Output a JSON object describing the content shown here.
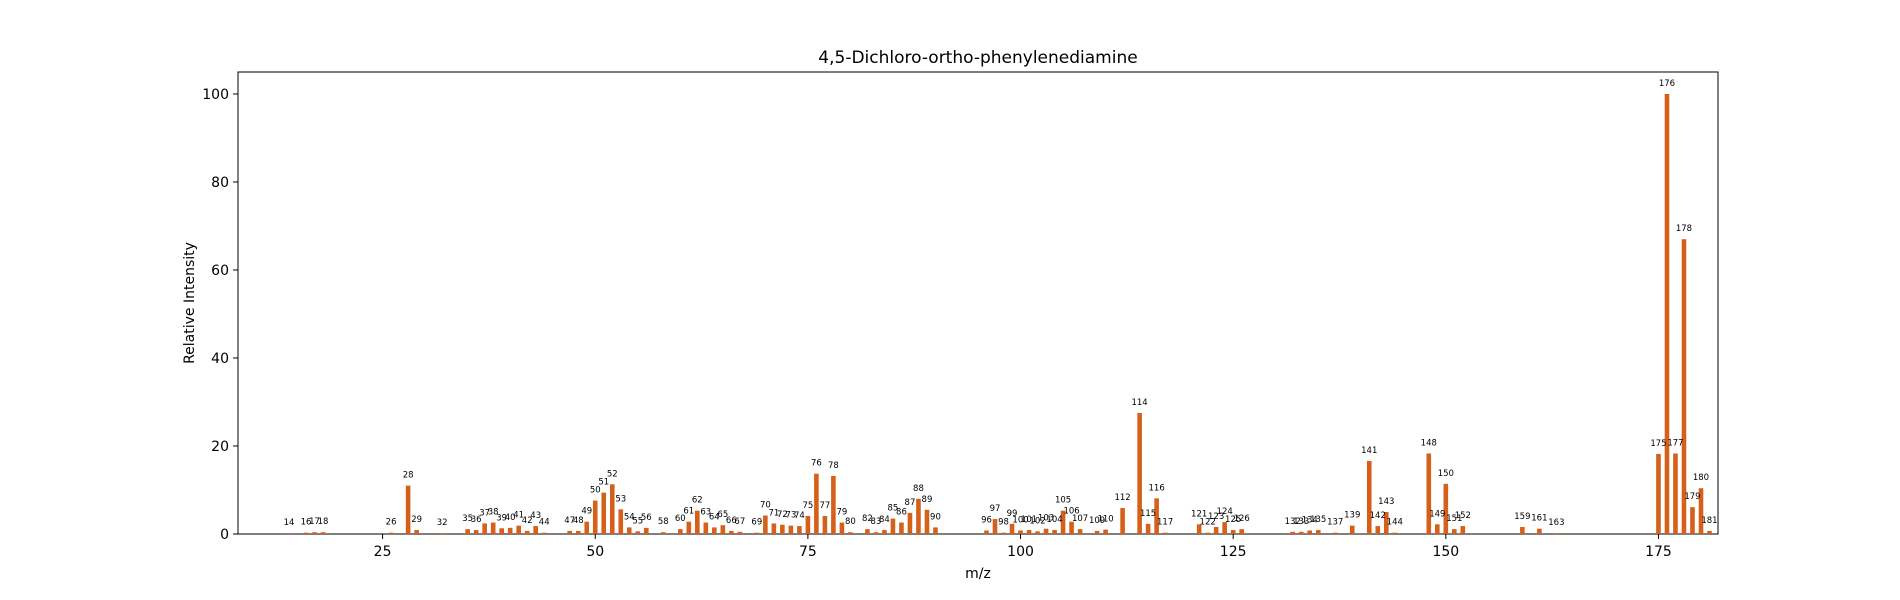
{
  "chart_data": {
    "type": "bar",
    "title": "4,5-Dichloro-ortho-phenylenediamine",
    "xlabel": "m/z",
    "ylabel": "Relative Intensity",
    "xlim": [
      8,
      182
    ],
    "ylim": [
      0,
      105
    ],
    "xticks": [
      25,
      50,
      75,
      100,
      125,
      150,
      175
    ],
    "yticks": [
      0,
      20,
      40,
      60,
      80,
      100
    ],
    "grid": false,
    "bar_color": "#d4601a",
    "x": [
      14,
      16,
      17,
      18,
      26,
      28,
      29,
      32,
      35,
      36,
      37,
      38,
      39,
      40,
      41,
      42,
      43,
      44,
      47,
      48,
      49,
      50,
      51,
      52,
      53,
      54,
      55,
      56,
      58,
      60,
      61,
      62,
      63,
      64,
      65,
      66,
      67,
      69,
      70,
      71,
      72,
      73,
      74,
      75,
      76,
      77,
      78,
      79,
      80,
      82,
      83,
      84,
      85,
      86,
      87,
      88,
      89,
      90,
      96,
      97,
      98,
      99,
      100,
      101,
      102,
      103,
      104,
      105,
      106,
      107,
      109,
      110,
      112,
      114,
      115,
      116,
      117,
      121,
      122,
      123,
      124,
      125,
      126,
      132,
      133,
      134,
      135,
      137,
      139,
      141,
      142,
      143,
      144,
      148,
      149,
      150,
      151,
      152,
      159,
      161,
      163,
      175,
      176,
      177,
      178,
      179,
      180,
      181
    ],
    "values": [
      0.2,
      0.3,
      0.4,
      0.4,
      0.3,
      11,
      0.9,
      0.2,
      1.1,
      0.9,
      2.4,
      2.6,
      1.3,
      1.4,
      1.9,
      0.7,
      1.8,
      0.3,
      0.7,
      0.7,
      2.8,
      7.6,
      9.4,
      11.3,
      5.6,
      1.5,
      0.6,
      1.4,
      0.4,
      1.1,
      2.8,
      5.3,
      2.6,
      1.5,
      2.0,
      0.7,
      0.5,
      0.3,
      4.2,
      2.4,
      2.1,
      1.9,
      1.8,
      4.1,
      13.7,
      4.1,
      13.2,
      2.6,
      0.4,
      1.1,
      0.4,
      0.9,
      3.5,
      2.6,
      4.8,
      8.0,
      5.5,
      1.5,
      0.8,
      3.4,
      0.3,
      2.3,
      0.8,
      0.9,
      0.6,
      1.2,
      0.9,
      5.3,
      2.8,
      1.1,
      0.7,
      1.0,
      5.9,
      27.5,
      2.3,
      8.1,
      0.3,
      2.2,
      0.3,
      1.6,
      2.7,
      0.9,
      1.1,
      0.5,
      0.5,
      0.8,
      0.9,
      0.3,
      1.9,
      16.6,
      1.8,
      5.0,
      0.3,
      18.3,
      2.2,
      11.4,
      1.1,
      1.8,
      1.6,
      1.2,
      0.2,
      18.2,
      100,
      18.3,
      67,
      6.1,
      10.4,
      0.7
    ],
    "labels": [
      "14",
      "16",
      "17",
      "18",
      "26",
      "28",
      "29",
      "32",
      "35",
      "36",
      "37",
      "38",
      "39",
      "40",
      "41",
      "42",
      "43",
      "44",
      "47",
      "48",
      "49",
      "50",
      "51",
      "52",
      "53",
      "54",
      "55",
      "56",
      "58",
      "60",
      "61",
      "62",
      "63",
      "64",
      "65",
      "66",
      "67",
      "69",
      "70",
      "71",
      "72",
      "73",
      "74",
      "75",
      "76",
      "77",
      "78",
      "79",
      "80",
      "82",
      "83",
      "84",
      "85",
      "86",
      "87",
      "88",
      "89",
      "90",
      "96",
      "97",
      "98",
      "99",
      "100",
      "101",
      "102",
      "103",
      "104",
      "105",
      "106",
      "107",
      "109",
      "110",
      "112",
      "114",
      "115",
      "116",
      "117",
      "121",
      "122",
      "123",
      "124",
      "125",
      "126",
      "132",
      "133",
      "134",
      "135",
      "137",
      "139",
      "141",
      "142",
      "143",
      "144",
      "148",
      "149",
      "150",
      "151",
      "152",
      "159",
      "161",
      "163",
      "175",
      "176",
      "177",
      "178",
      "179",
      "180",
      "181"
    ]
  }
}
